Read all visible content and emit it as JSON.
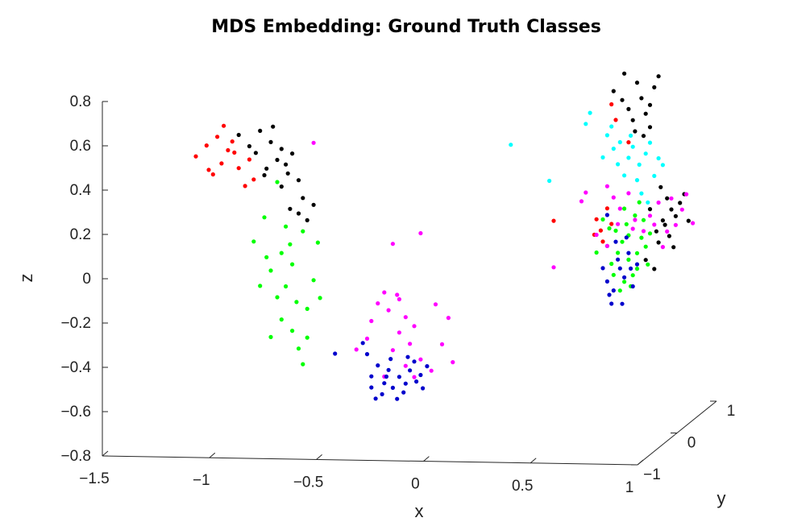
{
  "chart_data": {
    "type": "scatter",
    "title": "MDS Embedding: Ground Truth Classes",
    "xlabel": "x",
    "ylabel": "y",
    "zlabel": "z",
    "xlim": [
      -1.5,
      1
    ],
    "ylim": [
      -1,
      1
    ],
    "zlim": [
      -0.8,
      0.8
    ],
    "x_ticks": [
      "−1.5",
      "−1",
      "−0.5",
      "0",
      "0.5",
      "1"
    ],
    "y_ticks": [
      "−1",
      "0",
      "1"
    ],
    "z_ticks": [
      "−0.8",
      "−0.6",
      "−0.4",
      "−0.2",
      "0",
      "0.2",
      "0.4",
      "0.6",
      "0.8"
    ],
    "grid": false,
    "legend": "none",
    "series": [
      {
        "color": "#ff0000",
        "points": [
          [
            -1.1,
            -0.8,
            0.53
          ],
          [
            -1.05,
            -0.8,
            0.58
          ],
          [
            -1.0,
            -0.8,
            0.62
          ],
          [
            -0.95,
            -0.8,
            0.56
          ],
          [
            -1.02,
            -0.8,
            0.45
          ],
          [
            -0.98,
            -0.8,
            0.5
          ],
          [
            -0.93,
            -0.8,
            0.6
          ],
          [
            -0.9,
            -0.8,
            0.48
          ],
          [
            -0.87,
            -0.8,
            0.4
          ],
          [
            -0.85,
            -0.8,
            0.52
          ],
          [
            -0.97,
            -0.8,
            0.67
          ],
          [
            -0.83,
            -0.8,
            0.43
          ],
          [
            -1.04,
            -0.8,
            0.47
          ],
          [
            -0.92,
            -0.8,
            0.55
          ],
          [
            0.62,
            0.4,
            0.62
          ],
          [
            0.64,
            0.4,
            0.55
          ],
          [
            0.55,
            0.4,
            0.1
          ],
          [
            0.57,
            0.4,
            0.05
          ],
          [
            0.6,
            0.4,
            0.15
          ],
          [
            0.54,
            0.4,
            0.03
          ],
          [
            0.62,
            0.4,
            0.08
          ],
          [
            0.58,
            0.4,
            0.0
          ],
          [
            0.7,
            0.4,
            0.45
          ],
          [
            0.35,
            0.4,
            0.09
          ]
        ]
      },
      {
        "color": "#000000",
        "points": [
          [
            -0.9,
            -0.8,
            0.63
          ],
          [
            -0.85,
            -0.8,
            0.58
          ],
          [
            -0.8,
            -0.8,
            0.65
          ],
          [
            -0.75,
            -0.8,
            0.6
          ],
          [
            -0.72,
            -0.8,
            0.52
          ],
          [
            -0.78,
            -0.8,
            0.45
          ],
          [
            -0.7,
            -0.8,
            0.4
          ],
          [
            -0.68,
            -0.8,
            0.5
          ],
          [
            -0.65,
            -0.8,
            0.55
          ],
          [
            -0.62,
            -0.8,
            0.43
          ],
          [
            -0.6,
            -0.8,
            0.35
          ],
          [
            -0.66,
            -0.8,
            0.3
          ],
          [
            -0.55,
            -0.8,
            0.32
          ],
          [
            -0.58,
            -0.8,
            0.25
          ],
          [
            -0.62,
            -0.8,
            0.28
          ],
          [
            -0.82,
            -0.8,
            0.55
          ],
          [
            -0.74,
            -0.8,
            0.67
          ],
          [
            -0.7,
            -0.8,
            0.57
          ],
          [
            -0.77,
            -0.8,
            0.48
          ],
          [
            -0.67,
            -0.8,
            0.46
          ],
          [
            0.63,
            0.4,
            0.68
          ],
          [
            0.67,
            0.4,
            0.64
          ],
          [
            0.7,
            0.4,
            0.6
          ],
          [
            0.74,
            0.4,
            0.72
          ],
          [
            0.76,
            0.4,
            0.65
          ],
          [
            0.72,
            0.4,
            0.55
          ],
          [
            0.78,
            0.4,
            0.58
          ],
          [
            0.8,
            0.4,
            0.62
          ],
          [
            0.68,
            0.4,
            0.76
          ],
          [
            0.82,
            0.4,
            0.7
          ],
          [
            0.84,
            0.4,
            0.75
          ],
          [
            0.8,
            0.4,
            0.52
          ],
          [
            0.73,
            0.4,
            0.5
          ],
          [
            0.77,
            0.4,
            0.48
          ],
          [
            0.85,
            0.4,
            0.25
          ],
          [
            0.88,
            0.4,
            0.2
          ],
          [
            0.9,
            0.4,
            0.15
          ],
          [
            0.86,
            0.4,
            0.1
          ],
          [
            0.92,
            0.4,
            0.12
          ],
          [
            0.94,
            0.4,
            0.18
          ],
          [
            0.83,
            0.4,
            0.05
          ],
          [
            0.89,
            0.4,
            0.03
          ],
          [
            0.8,
            0.4,
            0.15
          ],
          [
            0.96,
            0.4,
            0.22
          ],
          [
            0.84,
            0.4,
            0.0
          ],
          [
            0.91,
            0.4,
            -0.02
          ],
          [
            0.78,
            0.4,
            -0.08
          ],
          [
            0.82,
            0.4,
            -0.12
          ],
          [
            0.98,
            0.4,
            0.1
          ],
          [
            0.87,
            0.4,
            0.08
          ]
        ]
      },
      {
        "color": "#00ff00",
        "points": [
          [
            -0.72,
            -0.8,
            0.42
          ],
          [
            -0.78,
            -0.8,
            0.26
          ],
          [
            -0.83,
            -0.8,
            0.15
          ],
          [
            -0.77,
            -0.8,
            0.08
          ],
          [
            -0.7,
            -0.8,
            0.1
          ],
          [
            -0.75,
            -0.8,
            0.02
          ],
          [
            -0.65,
            -0.8,
            0.05
          ],
          [
            -0.6,
            -0.8,
            0.2
          ],
          [
            -0.68,
            -0.8,
            -0.05
          ],
          [
            -0.72,
            -0.8,
            -0.1
          ],
          [
            -0.63,
            -0.8,
            -0.12
          ],
          [
            -0.7,
            -0.8,
            -0.2
          ],
          [
            -0.65,
            -0.8,
            -0.25
          ],
          [
            -0.58,
            -0.8,
            -0.15
          ],
          [
            -0.75,
            -0.8,
            -0.28
          ],
          [
            -0.62,
            -0.8,
            -0.33
          ],
          [
            -0.55,
            -0.8,
            -0.02
          ],
          [
            -0.53,
            -0.8,
            0.15
          ],
          [
            -0.8,
            -0.8,
            -0.05
          ],
          [
            -0.6,
            -0.8,
            -0.4
          ],
          [
            -0.52,
            -0.8,
            -0.1
          ],
          [
            -0.68,
            -0.8,
            0.22
          ],
          [
            -0.58,
            -0.8,
            -0.28
          ],
          [
            -0.66,
            -0.8,
            0.14
          ],
          [
            0.55,
            0.4,
            -0.05
          ],
          [
            0.6,
            0.4,
            -0.02
          ],
          [
            0.62,
            0.4,
            -0.1
          ],
          [
            0.65,
            0.4,
            -0.05
          ],
          [
            0.67,
            0.4,
            0.0
          ],
          [
            0.7,
            0.4,
            -0.08
          ],
          [
            0.72,
            0.4,
            -0.15
          ],
          [
            0.68,
            0.4,
            -0.18
          ],
          [
            0.74,
            0.4,
            -0.05
          ],
          [
            0.76,
            0.4,
            0.02
          ],
          [
            0.64,
            0.4,
            0.05
          ],
          [
            0.69,
            0.4,
            0.08
          ],
          [
            0.73,
            0.4,
            0.12
          ],
          [
            0.77,
            0.4,
            0.1
          ],
          [
            0.71,
            0.4,
            -0.2
          ],
          [
            0.66,
            0.4,
            -0.22
          ],
          [
            0.79,
            0.4,
            -0.1
          ],
          [
            0.61,
            0.4,
            0.06
          ],
          [
            0.75,
            0.4,
            0.18
          ],
          [
            0.8,
            0.4,
            0.04
          ],
          [
            0.58,
            0.4,
            0.1
          ],
          [
            0.68,
            0.4,
            0.15
          ],
          [
            0.63,
            0.4,
            -0.15
          ],
          [
            0.78,
            0.4,
            -0.02
          ],
          [
            0.7,
            0.4,
            0.03
          ],
          [
            0.74,
            0.4,
            -0.12
          ]
        ]
      },
      {
        "color": "#ff00ff",
        "points": [
          [
            -0.22,
            -0.8,
            -0.07
          ],
          [
            -0.2,
            -0.8,
            -0.15
          ],
          [
            -0.28,
            -0.8,
            -0.2
          ],
          [
            -0.15,
            -0.8,
            -0.1
          ],
          [
            -0.12,
            -0.8,
            -0.18
          ],
          [
            -0.08,
            -0.8,
            -0.22
          ],
          [
            -0.1,
            -0.8,
            -0.3
          ],
          [
            -0.15,
            -0.8,
            -0.25
          ],
          [
            -0.18,
            -0.8,
            -0.33
          ],
          [
            -0.05,
            -0.8,
            -0.37
          ],
          [
            -0.12,
            -0.8,
            -0.4
          ],
          [
            -0.22,
            -0.8,
            -0.45
          ],
          [
            -0.3,
            -0.8,
            -0.28
          ],
          [
            0.0,
            -0.8,
            -0.42
          ],
          [
            0.05,
            -0.8,
            -0.3
          ],
          [
            -0.08,
            -0.8,
            -0.45
          ],
          [
            0.02,
            -0.8,
            -0.12
          ],
          [
            -0.25,
            -0.8,
            -0.12
          ],
          [
            0.1,
            -0.8,
            -0.38
          ],
          [
            -0.16,
            -0.8,
            -0.08
          ],
          [
            -0.35,
            -0.8,
            -0.33
          ],
          [
            0.08,
            -0.8,
            -0.18
          ],
          [
            -0.05,
            -0.8,
            0.2
          ],
          [
            -0.18,
            -0.8,
            0.15
          ],
          [
            -0.55,
            -0.8,
            0.6
          ],
          [
            0.5,
            0.4,
            0.22
          ],
          [
            0.48,
            0.4,
            0.18
          ],
          [
            0.6,
            0.4,
            0.25
          ],
          [
            0.63,
            0.4,
            0.2
          ],
          [
            0.66,
            0.4,
            0.15
          ],
          [
            0.7,
            0.4,
            0.22
          ],
          [
            0.73,
            0.4,
            0.1
          ],
          [
            0.77,
            0.4,
            0.05
          ],
          [
            0.8,
            0.4,
            0.12
          ],
          [
            0.84,
            0.4,
            0.18
          ],
          [
            0.88,
            0.4,
            0.05
          ],
          [
            0.92,
            0.4,
            0.08
          ],
          [
            0.95,
            0.4,
            0.15
          ],
          [
            1.0,
            0.4,
            0.09
          ],
          [
            0.97,
            0.4,
            0.22
          ],
          [
            0.86,
            0.4,
            -0.02
          ],
          [
            0.6,
            0.4,
            -0.02
          ],
          [
            0.65,
            0.4,
            0.08
          ],
          [
            0.35,
            0.4,
            -0.12
          ],
          [
            0.9,
            0.4,
            0.2
          ],
          [
            0.55,
            0.4,
            0.03
          ],
          [
            0.72,
            0.4,
            0.06
          ],
          [
            0.82,
            0.4,
            0.08
          ]
        ]
      },
      {
        "color": "#00ffff",
        "points": [
          [
            0.15,
            0.4,
            0.43
          ],
          [
            0.33,
            0.4,
            0.27
          ],
          [
            0.5,
            0.4,
            0.53
          ],
          [
            0.52,
            0.4,
            0.58
          ],
          [
            0.6,
            0.4,
            0.48
          ],
          [
            0.63,
            0.4,
            0.42
          ],
          [
            0.66,
            0.4,
            0.45
          ],
          [
            0.7,
            0.4,
            0.38
          ],
          [
            0.72,
            0.4,
            0.43
          ],
          [
            0.75,
            0.4,
            0.35
          ],
          [
            0.78,
            0.4,
            0.4
          ],
          [
            0.8,
            0.4,
            0.45
          ],
          [
            0.68,
            0.4,
            0.3
          ],
          [
            0.74,
            0.4,
            0.28
          ],
          [
            0.76,
            0.4,
            0.22
          ],
          [
            0.82,
            0.4,
            0.3
          ],
          [
            0.84,
            0.4,
            0.38
          ],
          [
            0.86,
            0.4,
            0.35
          ],
          [
            0.65,
            0.4,
            0.35
          ],
          [
            0.58,
            0.4,
            0.38
          ],
          [
            0.79,
            0.4,
            0.18
          ],
          [
            0.71,
            0.4,
            0.48
          ],
          [
            0.62,
            0.4,
            0.52
          ]
        ]
      },
      {
        "color": "#0000cc",
        "points": [
          [
            -0.3,
            -0.8,
            -0.35
          ],
          [
            -0.25,
            -0.8,
            -0.4
          ],
          [
            -0.28,
            -0.8,
            -0.45
          ],
          [
            -0.22,
            -0.8,
            -0.48
          ],
          [
            -0.2,
            -0.8,
            -0.42
          ],
          [
            -0.18,
            -0.8,
            -0.5
          ],
          [
            -0.15,
            -0.8,
            -0.45
          ],
          [
            -0.12,
            -0.8,
            -0.48
          ],
          [
            -0.1,
            -0.8,
            -0.42
          ],
          [
            -0.08,
            -0.8,
            -0.38
          ],
          [
            -0.05,
            -0.8,
            -0.44
          ],
          [
            -0.02,
            -0.8,
            -0.4
          ],
          [
            -0.23,
            -0.8,
            -0.53
          ],
          [
            -0.16,
            -0.8,
            -0.55
          ],
          [
            -0.26,
            -0.8,
            -0.55
          ],
          [
            -0.19,
            -0.8,
            -0.37
          ],
          [
            -0.13,
            -0.8,
            -0.52
          ],
          [
            -0.07,
            -0.8,
            -0.47
          ],
          [
            -0.28,
            -0.8,
            -0.5
          ],
          [
            -0.32,
            -0.8,
            -0.3
          ],
          [
            -0.45,
            -0.8,
            -0.35
          ],
          [
            -0.11,
            -0.8,
            -0.36
          ],
          [
            -0.21,
            -0.8,
            -0.45
          ],
          [
            -0.04,
            -0.8,
            -0.5
          ],
          [
            0.58,
            0.4,
            -0.12
          ],
          [
            0.6,
            0.4,
            -0.18
          ],
          [
            0.63,
            0.4,
            -0.22
          ],
          [
            0.66,
            0.4,
            -0.12
          ],
          [
            0.68,
            0.4,
            -0.16
          ],
          [
            0.62,
            0.4,
            -0.28
          ],
          [
            0.65,
            0.4,
            -0.08
          ],
          [
            0.7,
            0.4,
            -0.05
          ],
          [
            0.72,
            0.4,
            -0.2
          ],
          [
            0.67,
            0.4,
            -0.28
          ],
          [
            0.61,
            0.4,
            -0.24
          ],
          [
            0.69,
            0.4,
            0.02
          ],
          [
            0.6,
            0.4,
            0.12
          ],
          [
            0.74,
            0.4,
            -0.1
          ],
          [
            0.64,
            0.4,
            0.0
          ],
          [
            0.71,
            0.4,
            -0.12
          ]
        ]
      }
    ]
  }
}
